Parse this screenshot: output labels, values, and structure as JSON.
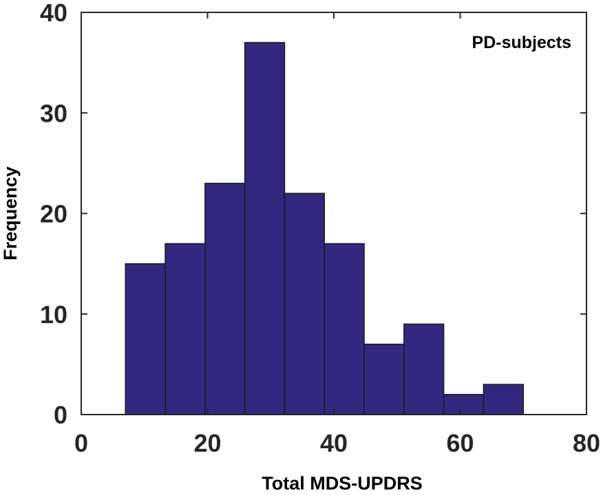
{
  "chart_data": {
    "type": "bar",
    "subtype": "histogram",
    "annotation": "PD-subjects",
    "xlabel": "Total MDS-UPDRS",
    "ylabel": "Frequency",
    "xlim": [
      0,
      80
    ],
    "ylim": [
      0,
      40
    ],
    "xticks": [
      0,
      20,
      40,
      60,
      80
    ],
    "yticks": [
      0,
      10,
      20,
      30,
      40
    ],
    "bin_edges": [
      7,
      13.3,
      19.6,
      25.9,
      32.2,
      38.5,
      44.8,
      51.1,
      57.4,
      63.7,
      70
    ],
    "values": [
      15,
      17,
      23,
      37,
      22,
      17,
      7,
      9,
      2,
      3
    ],
    "grid": false,
    "bar_color": "#33287f",
    "edge_color": "#1a1a1a"
  }
}
